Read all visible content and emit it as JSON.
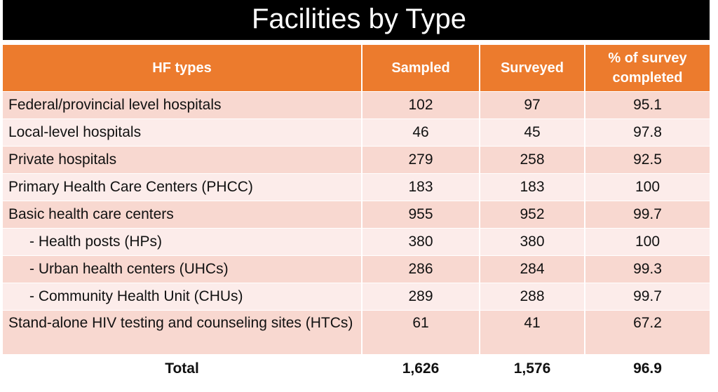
{
  "title": "Facilities by Type",
  "colors": {
    "header_bg": "#ec7b2d",
    "row_odd": "#f8d8d0",
    "row_even": "#fcecea",
    "title_bg": "#000000"
  },
  "table": {
    "headers": [
      "HF types",
      "Sampled",
      "Surveyed",
      "% of survey completed"
    ],
    "rows": [
      {
        "type": "Federal/provincial level hospitals",
        "sampled": "102",
        "surveyed": "97",
        "pct": "95.1"
      },
      {
        "type": "Local-level hospitals",
        "sampled": "46",
        "surveyed": "45",
        "pct": "97.8"
      },
      {
        "type": "Private hospitals",
        "sampled": "279",
        "surveyed": "258",
        "pct": "92.5"
      },
      {
        "type": "Primary Health Care Centers (PHCC)",
        "sampled": "183",
        "surveyed": "183",
        "pct": "100"
      },
      {
        "type": "Basic health care centers",
        "sampled": "955",
        "surveyed": "952",
        "pct": "99.7"
      },
      {
        "type": "- Health posts (HPs)",
        "sampled": "380",
        "surveyed": "380",
        "pct": "100"
      },
      {
        "type": "- Urban health centers (UHCs)",
        "sampled": "286",
        "surveyed": "284",
        "pct": "99.3"
      },
      {
        "type": "- Community Health Unit (CHUs)",
        "sampled": "289",
        "surveyed": "288",
        "pct": "99.7"
      },
      {
        "type": "Stand-alone HIV testing and counseling sites (HTCs)",
        "sampled": "61",
        "surveyed": "41",
        "pct": "67.2"
      }
    ],
    "total": {
      "label": "Total",
      "sampled": "1,626",
      "surveyed": "1,576",
      "pct": "96.9"
    }
  }
}
